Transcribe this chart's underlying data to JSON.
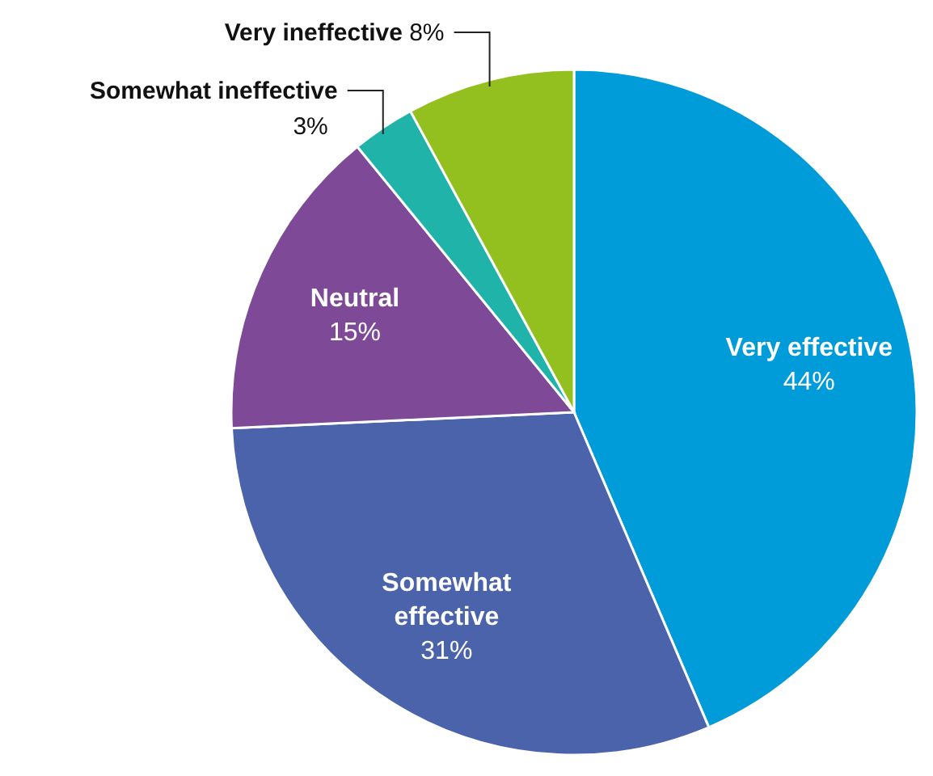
{
  "chart_data": {
    "type": "pie",
    "categories": [
      "Very effective",
      "Somewhat effective",
      "Neutral",
      "Somewhat ineffective",
      "Very ineffective"
    ],
    "values": [
      44,
      31,
      15,
      3,
      8
    ],
    "colors": [
      "#009bd9",
      "#4a63aa",
      "#7e4a97",
      "#1fb3a9",
      "#93c01f"
    ],
    "value_labels": [
      "44%",
      "31%",
      "15%",
      "3%",
      "8%"
    ]
  }
}
